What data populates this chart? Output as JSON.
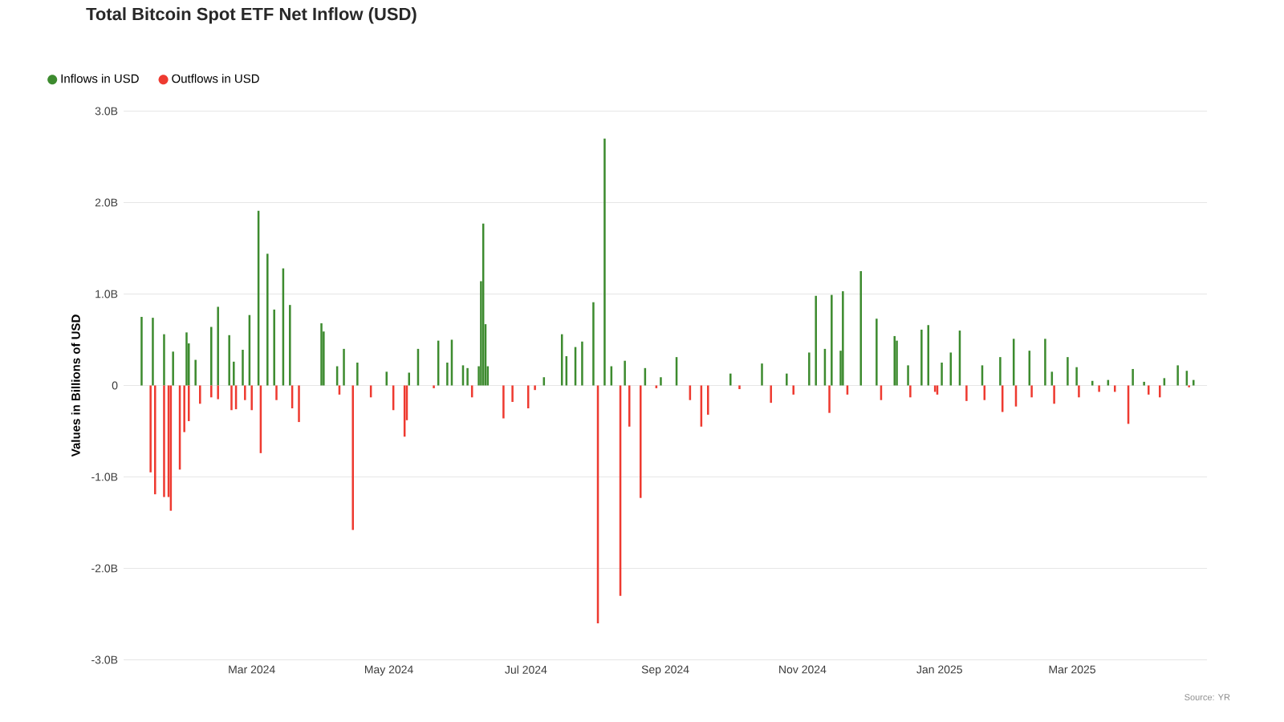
{
  "chart_data": {
    "type": "bar",
    "title": "Total Bitcoin Spot ETF Net Inflow (USD)",
    "ylabel": "Values in Billions of USD",
    "series": [
      {
        "name": "Inflows in USD",
        "color": "#3d8b2f",
        "x": [
          "2024-01-12",
          "2024-01-17",
          "2024-01-22",
          "2024-01-26",
          "2024-02-01",
          "2024-02-02",
          "2024-02-05",
          "2024-02-12",
          "2024-02-15",
          "2024-02-20",
          "2024-02-22",
          "2024-02-26",
          "2024-02-29",
          "2024-03-04",
          "2024-03-08",
          "2024-03-11",
          "2024-03-15",
          "2024-03-18",
          "2024-04-01",
          "2024-04-02",
          "2024-04-08",
          "2024-04-11",
          "2024-04-17",
          "2024-04-30",
          "2024-05-10",
          "2024-05-14",
          "2024-05-23",
          "2024-05-27",
          "2024-05-29",
          "2024-06-03",
          "2024-06-05",
          "2024-06-10",
          "2024-06-11",
          "2024-06-12",
          "2024-06-13",
          "2024-06-14",
          "2024-07-09",
          "2024-07-17",
          "2024-07-19",
          "2024-07-23",
          "2024-07-26",
          "2024-07-31",
          "2024-08-05",
          "2024-08-08",
          "2024-08-14",
          "2024-08-23",
          "2024-08-30",
          "2024-09-06",
          "2024-09-30",
          "2024-10-14",
          "2024-10-25",
          "2024-11-04",
          "2024-11-07",
          "2024-11-11",
          "2024-11-14",
          "2024-11-18",
          "2024-11-19",
          "2024-11-27",
          "2024-12-04",
          "2024-12-12",
          "2024-12-13",
          "2024-12-18",
          "2024-12-24",
          "2024-12-27",
          "2025-01-02",
          "2025-01-06",
          "2025-01-10",
          "2025-01-20",
          "2025-01-28",
          "2025-02-03",
          "2025-02-10",
          "2025-02-17",
          "2025-02-20",
          "2025-02-27",
          "2025-03-03",
          "2025-03-10",
          "2025-03-17",
          "2025-03-28",
          "2025-04-02",
          "2025-04-11",
          "2025-04-17",
          "2025-04-21",
          "2025-04-24"
        ],
        "values": [
          0.75,
          0.74,
          0.56,
          0.37,
          0.58,
          0.46,
          0.28,
          0.64,
          0.86,
          0.55,
          0.26,
          0.39,
          0.77,
          1.91,
          1.44,
          0.83,
          1.28,
          0.88,
          0.68,
          0.59,
          0.21,
          0.4,
          0.25,
          0.15,
          0.14,
          0.4,
          0.49,
          0.25,
          0.5,
          0.22,
          0.19,
          0.21,
          1.14,
          1.77,
          0.67,
          0.21,
          0.09,
          0.56,
          0.32,
          0.42,
          0.48,
          0.91,
          2.7,
          0.21,
          0.27,
          0.19,
          0.09,
          0.31,
          0.13,
          0.24,
          0.13,
          0.36,
          0.98,
          0.4,
          0.99,
          0.38,
          1.03,
          1.25,
          0.73,
          0.54,
          0.49,
          0.22,
          0.61,
          0.66,
          0.25,
          0.36,
          0.6,
          0.22,
          0.31,
          0.51,
          0.38,
          0.51,
          0.15,
          0.31,
          0.2,
          0.05,
          0.06,
          0.18,
          0.04,
          0.08,
          0.22,
          0.16,
          0.06
        ]
      },
      {
        "name": "Outflows in USD",
        "color": "#ee3a30",
        "x": [
          "2024-01-16",
          "2024-01-18",
          "2024-01-22",
          "2024-01-24",
          "2024-01-25",
          "2024-01-29",
          "2024-01-31",
          "2024-02-02",
          "2024-02-07",
          "2024-02-12",
          "2024-02-15",
          "2024-02-21",
          "2024-02-23",
          "2024-02-27",
          "2024-03-01",
          "2024-03-05",
          "2024-03-12",
          "2024-03-19",
          "2024-03-22",
          "2024-04-09",
          "2024-04-15",
          "2024-04-23",
          "2024-05-03",
          "2024-05-08",
          "2024-05-09",
          "2024-05-21",
          "2024-06-07",
          "2024-06-21",
          "2024-06-25",
          "2024-07-02",
          "2024-07-05",
          "2024-08-02",
          "2024-08-12",
          "2024-08-16",
          "2024-08-21",
          "2024-08-28",
          "2024-09-12",
          "2024-09-17",
          "2024-09-20",
          "2024-10-04",
          "2024-10-18",
          "2024-10-28",
          "2024-11-13",
          "2024-11-21",
          "2024-12-06",
          "2024-12-19",
          "2024-12-30",
          "2024-12-31",
          "2025-01-13",
          "2025-01-21",
          "2025-01-29",
          "2025-02-04",
          "2025-02-11",
          "2025-02-21",
          "2025-03-04",
          "2025-03-13",
          "2025-03-20",
          "2025-03-26",
          "2025-04-04",
          "2025-04-09",
          "2025-04-22"
        ],
        "values": [
          -0.95,
          -1.19,
          -1.22,
          -1.22,
          -1.37,
          -0.92,
          -0.51,
          -0.39,
          -0.2,
          -0.13,
          -0.15,
          -0.27,
          -0.26,
          -0.16,
          -0.27,
          -0.74,
          -0.16,
          -0.25,
          -0.4,
          -0.1,
          -1.58,
          -0.13,
          -0.27,
          -0.56,
          -0.38,
          -0.03,
          -0.13,
          -0.36,
          -0.18,
          -0.25,
          -0.05,
          -2.6,
          -2.3,
          -0.45,
          -1.23,
          -0.03,
          -0.16,
          -0.45,
          -0.32,
          -0.04,
          -0.19,
          -0.1,
          -0.3,
          -0.1,
          -0.16,
          -0.13,
          -0.07,
          -0.1,
          -0.17,
          -0.16,
          -0.29,
          -0.23,
          -0.13,
          -0.2,
          -0.13,
          -0.07,
          -0.07,
          -0.42,
          -0.1,
          -0.13,
          -0.02
        ]
      }
    ],
    "xlim": [
      "2024-01-04",
      "2025-04-30"
    ],
    "xticks": [
      {
        "value": "2024-03-01",
        "label": "Mar 2024"
      },
      {
        "value": "2024-05-01",
        "label": "May 2024"
      },
      {
        "value": "2024-07-01",
        "label": "Jul 2024"
      },
      {
        "value": "2024-09-01",
        "label": "Sep 2024"
      },
      {
        "value": "2024-11-01",
        "label": "Nov 2024"
      },
      {
        "value": "2025-01-01",
        "label": "Jan 2025"
      },
      {
        "value": "2025-03-01",
        "label": "Mar 2025"
      }
    ],
    "ylim": [
      -3,
      3
    ],
    "yticks": [
      {
        "value": -3,
        "label": "-3.0B"
      },
      {
        "value": -2,
        "label": "-2.0B"
      },
      {
        "value": -1,
        "label": "-1.0B"
      },
      0,
      {
        "value": 1,
        "label": "1.0B"
      },
      {
        "value": 2,
        "label": "2.0B"
      },
      {
        "value": 3,
        "label": "3.0B"
      }
    ],
    "grid": "y",
    "legend": "top left",
    "annotations": [
      "Source: YR"
    ]
  }
}
